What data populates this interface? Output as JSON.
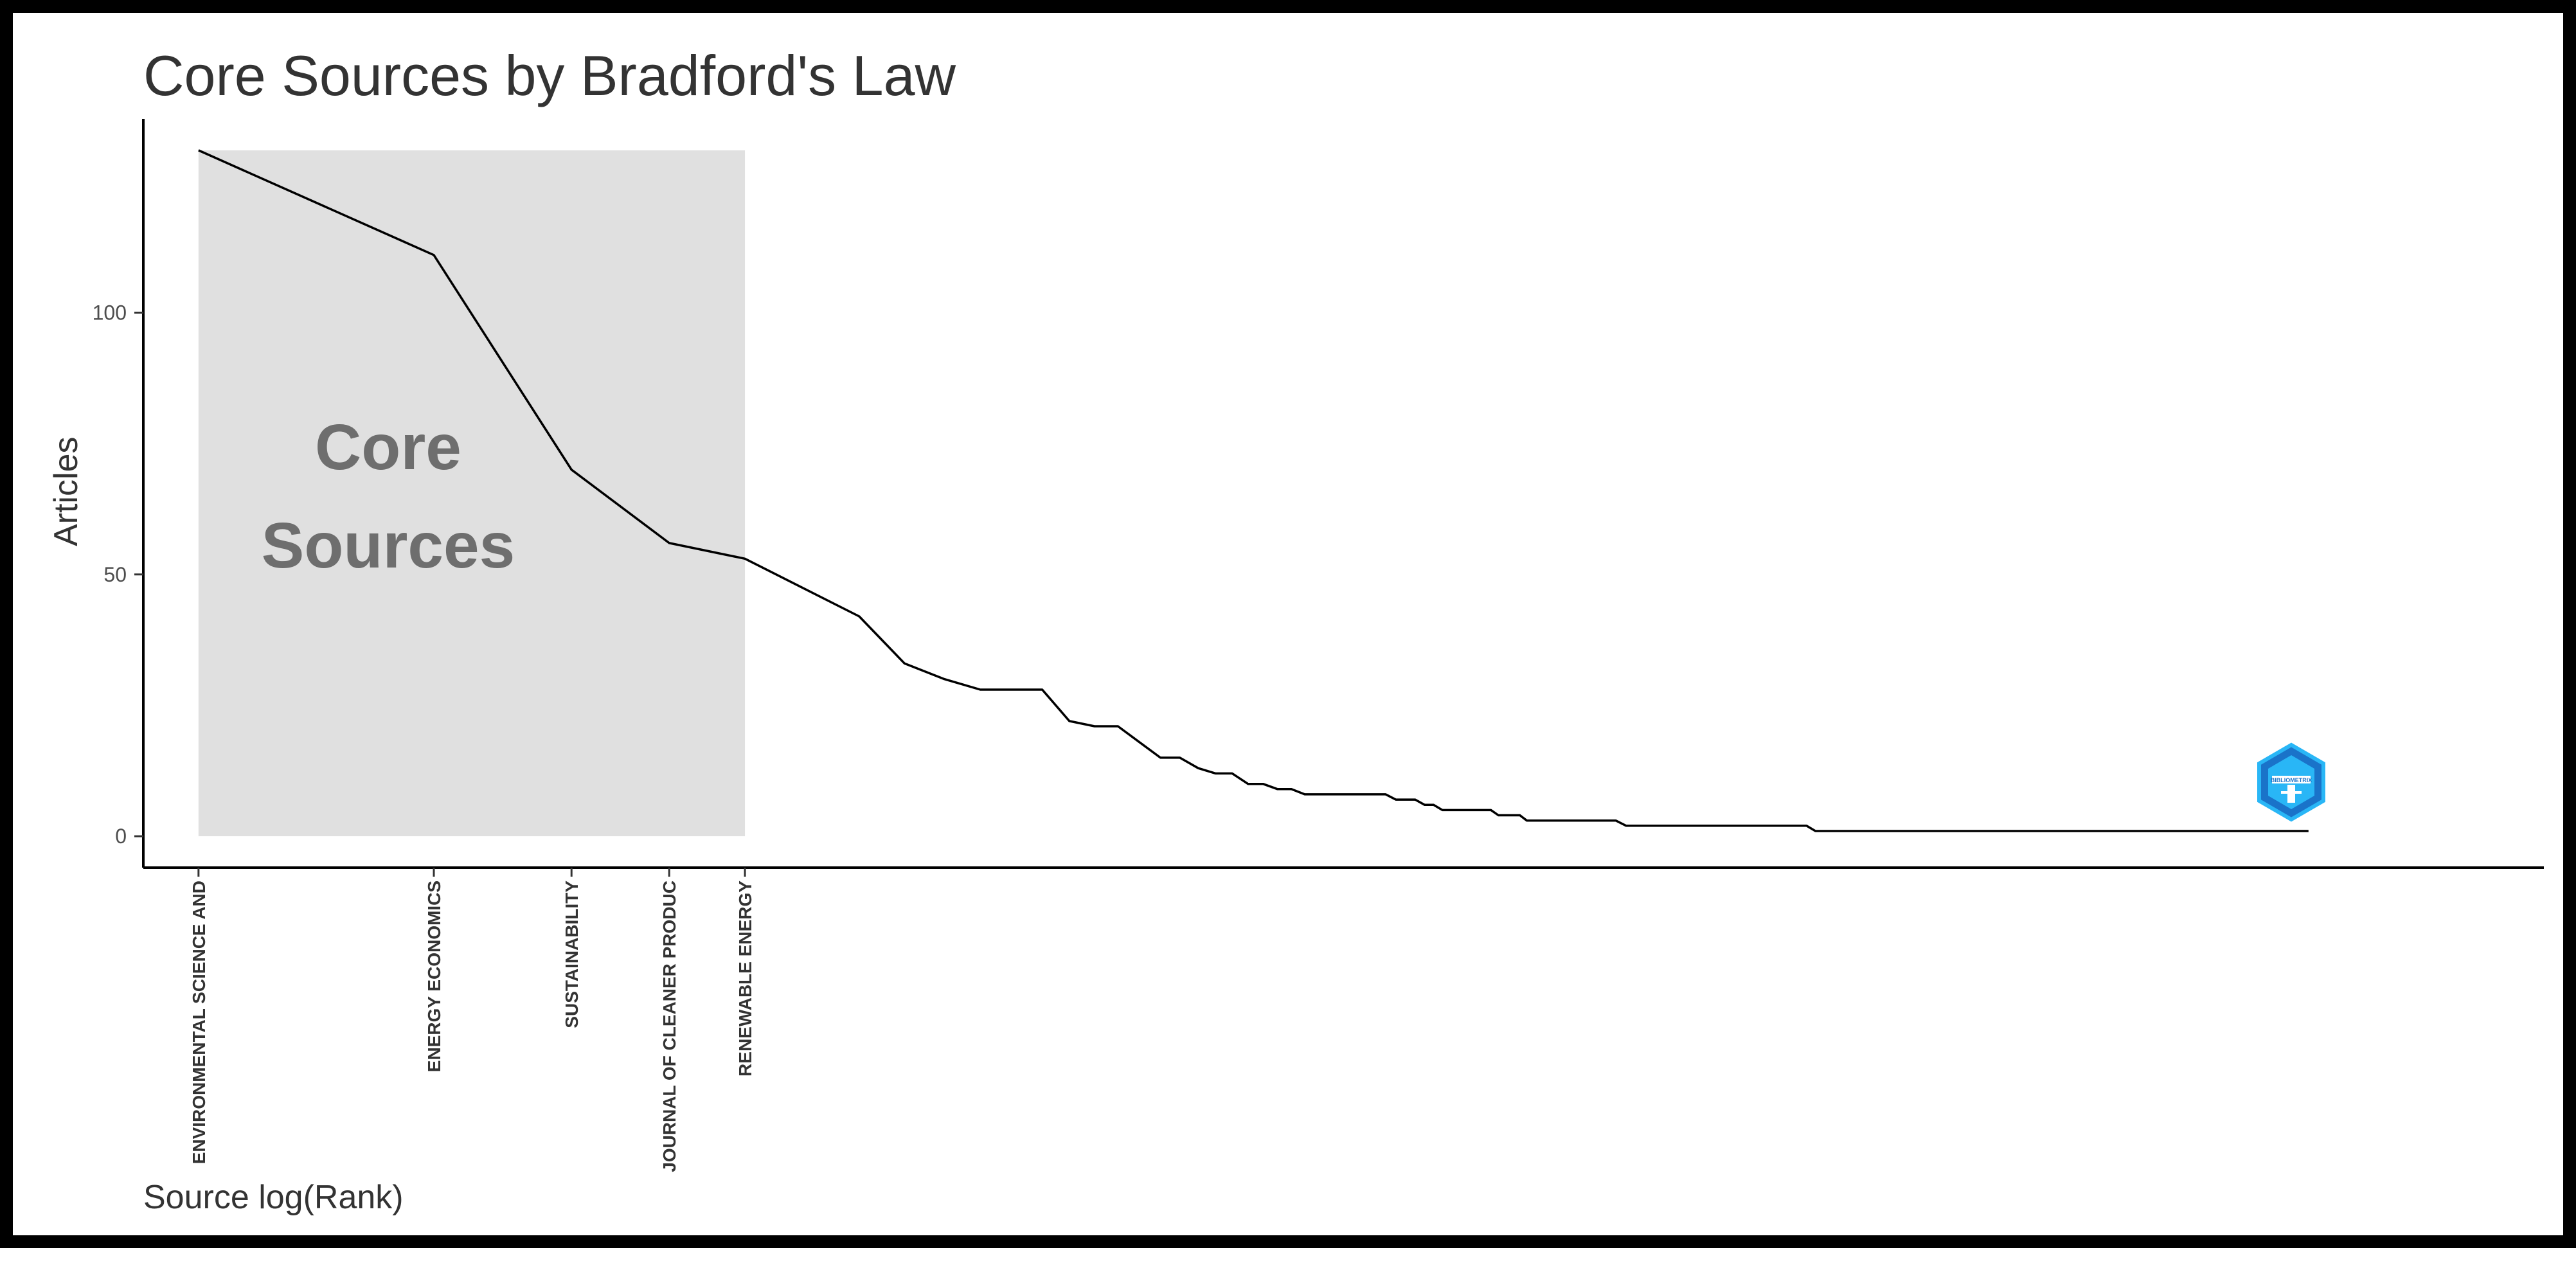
{
  "chart_data": {
    "type": "line",
    "title": "Core Sources by Bradford's Law",
    "xlabel": "Source log(Rank)",
    "ylabel": "Articles",
    "ylim": [
      -6,
      137
    ],
    "x_scale": "log",
    "xlim": [
      0.85,
      1000
    ],
    "yticks": [
      0,
      50,
      100
    ],
    "grid": false,
    "legend": "none",
    "line_color": "#000000",
    "core_zone": {
      "label_lines": [
        "Core",
        "Sources"
      ],
      "rank_start": 1,
      "rank_end": 5,
      "ymax": 131,
      "fill": "#e0e0e0"
    },
    "core_sources": [
      {
        "rank": 1,
        "name": "ENVIRONMENTAL SCIENCE AND",
        "articles": 131
      },
      {
        "rank": 2,
        "name": "ENERGY ECONOMICS",
        "articles": 111
      },
      {
        "rank": 3,
        "name": "SUSTAINABILITY",
        "articles": 70
      },
      {
        "rank": 4,
        "name": "JOURNAL OF CLEANER PRODUC",
        "articles": 56
      },
      {
        "rank": 5,
        "name": "RENEWABLE ENERGY",
        "articles": 53
      }
    ],
    "series": [
      {
        "points": [
          [
            1,
            131
          ],
          [
            2,
            111
          ],
          [
            3,
            70
          ],
          [
            4,
            56
          ],
          [
            5,
            53
          ],
          [
            7,
            42
          ],
          [
            8,
            33
          ],
          [
            9,
            30
          ],
          [
            10,
            28
          ],
          [
            12,
            28
          ],
          [
            13,
            22
          ],
          [
            14,
            21
          ],
          [
            15,
            21
          ],
          [
            17,
            15
          ],
          [
            18,
            15
          ],
          [
            19,
            13
          ],
          [
            20,
            12
          ],
          [
            21,
            12
          ],
          [
            22,
            10
          ],
          [
            23,
            10
          ],
          [
            24,
            9
          ],
          [
            25,
            9
          ],
          [
            26,
            8
          ],
          [
            33,
            8
          ],
          [
            34,
            7
          ],
          [
            36,
            7
          ],
          [
            37,
            6
          ],
          [
            38,
            6
          ],
          [
            39,
            5
          ],
          [
            45,
            5
          ],
          [
            46,
            4
          ],
          [
            49,
            4
          ],
          [
            50,
            3
          ],
          [
            65,
            3
          ],
          [
            67,
            2
          ],
          [
            114,
            2
          ],
          [
            117,
            1
          ],
          [
            500,
            1
          ]
        ]
      }
    ]
  },
  "watermark": {
    "icon": "bibliometrix-logo-icon",
    "text": "BIBLIOMETRIX",
    "colors": [
      "#1a73c9",
      "#29b6f6"
    ]
  }
}
